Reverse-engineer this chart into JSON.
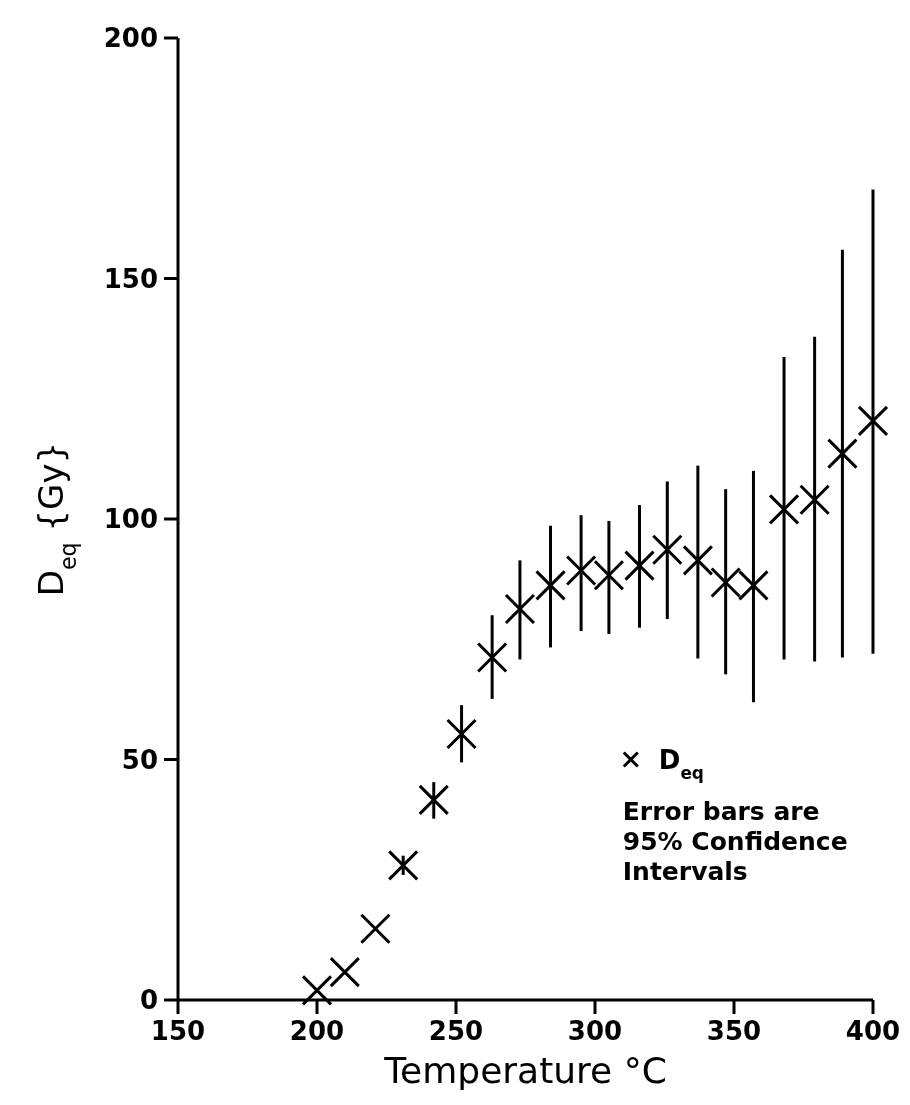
{
  "chart_data": {
    "type": "scatter",
    "xlabel": "Temperature °C",
    "ylabel": "D$_{eq}$ {Gy}",
    "xlim": [
      150,
      400
    ],
    "ylim": [
      0,
      200
    ],
    "xticks": [
      150,
      200,
      250,
      300,
      350,
      400
    ],
    "yticks": [
      0,
      50,
      100,
      150,
      200
    ],
    "grid": false,
    "legend": "bottom right",
    "marker": "cross",
    "series": [
      {
        "name": "D$_{eq}$",
        "color": "#000000",
        "x": [
          200,
          210,
          221,
          231,
          242,
          252,
          263,
          273,
          284,
          295,
          305,
          316,
          326,
          337,
          347,
          357,
          368,
          379,
          389,
          400
        ],
        "values": [
          2,
          5.8,
          14.8,
          28,
          41.6,
          55.3,
          71.2,
          81.3,
          86.2,
          89.3,
          88.3,
          90.3,
          93.6,
          91.4,
          86.8,
          86.2,
          102,
          104,
          113.6,
          120.4
        ],
        "errors": [
          null,
          null,
          null,
          [
            26,
            30
          ],
          [
            37.7,
            45.3
          ],
          [
            49.4,
            61.3
          ],
          [
            62.6,
            80
          ],
          [
            70.8,
            91.4
          ],
          [
            73.3,
            98.6
          ],
          [
            76.7,
            100.8
          ],
          [
            76.1,
            99.6
          ],
          [
            77.4,
            102.9
          ],
          [
            79.2,
            107.8
          ],
          [
            71,
            111.1
          ],
          [
            67.7,
            106.2
          ],
          [
            61.9,
            110
          ],
          [
            70.8,
            133.7
          ],
          [
            70.4,
            137.9
          ],
          [
            71.2,
            156
          ],
          [
            72,
            168.5
          ]
        ]
      }
    ],
    "annotations": [
      "Error bars are 95% Confidence Intervals"
    ]
  }
}
